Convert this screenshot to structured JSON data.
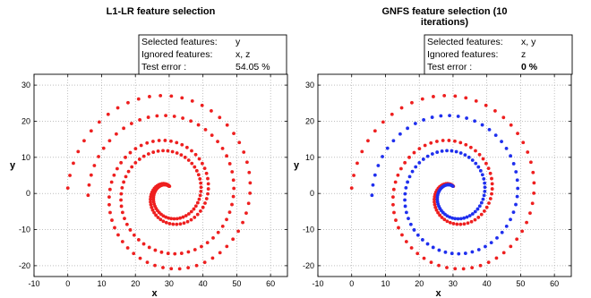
{
  "chart_data": [
    {
      "type": "scatter",
      "title_lines": [
        "L1-LR feature selection"
      ],
      "xlabel": "x",
      "ylabel": "y",
      "xlim": [
        -10,
        65
      ],
      "ylim": [
        -23,
        33
      ],
      "xticks": [
        -10,
        0,
        10,
        20,
        30,
        40,
        50,
        60
      ],
      "yticks": [
        -20,
        -10,
        0,
        10,
        20,
        30
      ],
      "grid": true,
      "legend_placement": "top-right",
      "legend": [
        {
          "key": "Selected features:",
          "value": "y",
          "bold": false
        },
        {
          "key": "Ignored features:",
          "value": "x, z",
          "bold": false
        },
        {
          "key": "Test error :",
          "value": "54.05 %",
          "bold": false
        }
      ],
      "spiral_center": [
        30,
        0
      ],
      "series": [
        {
          "color": "#ee1f1f",
          "arm_start_angle_deg": 0,
          "end_point": [
            0,
            1.5
          ]
        },
        {
          "color": "#ee1f1f",
          "arm_start_angle_deg": 180,
          "end_point": [
            6,
            -0.5
          ]
        }
      ]
    },
    {
      "type": "scatter",
      "title_lines": [
        "GNFS feature selection (10",
        "iterations)"
      ],
      "xlabel": "x",
      "ylabel": "y",
      "xlim": [
        -10,
        65
      ],
      "ylim": [
        -23,
        33
      ],
      "xticks": [
        -10,
        0,
        10,
        20,
        30,
        40,
        50,
        60
      ],
      "yticks": [
        -20,
        -10,
        0,
        10,
        20,
        30
      ],
      "grid": true,
      "legend_placement": "top-right",
      "legend": [
        {
          "key": "Selected features:",
          "value": "x, y",
          "bold": false
        },
        {
          "key": "Ignored features:",
          "value": "z",
          "bold": false
        },
        {
          "key": "Test error :",
          "value": "0 %",
          "bold": true
        }
      ],
      "spiral_center": [
        30,
        0
      ],
      "series": [
        {
          "color": "#ee1f1f",
          "arm_start_angle_deg": 0,
          "end_point": [
            0,
            1.5
          ]
        },
        {
          "color": "#1f2fee",
          "arm_start_angle_deg": 180,
          "end_point": [
            6,
            -0.5
          ]
        }
      ]
    }
  ]
}
